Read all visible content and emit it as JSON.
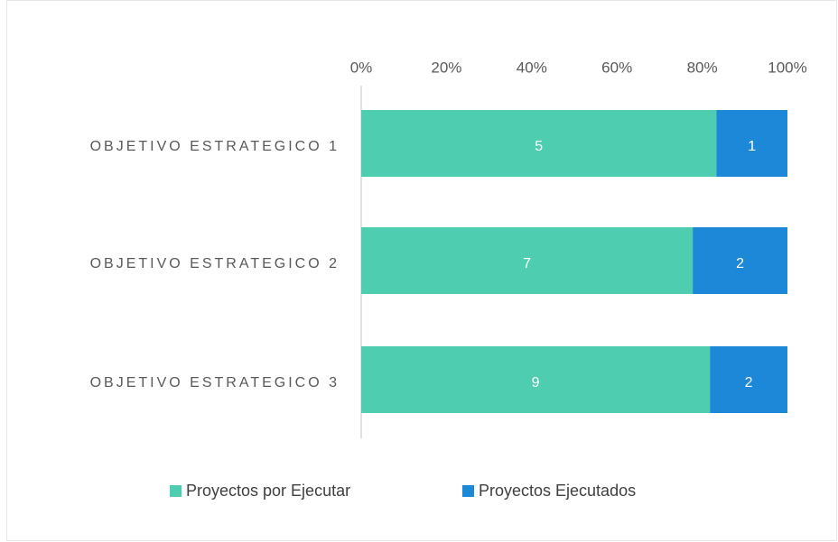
{
  "chart_data": {
    "type": "bar",
    "orientation": "horizontal",
    "stacking": "percent",
    "categories": [
      "OBJETIVO ESTRATEGICO 1",
      "OBJETIVO ESTRATEGICO 2",
      "OBJETIVO ESTRATEGICO 3"
    ],
    "series": [
      {
        "name": "Proyectos por Ejecutar",
        "color": "#4ecdb0",
        "values": [
          5,
          7,
          9
        ]
      },
      {
        "name": "Proyectos Ejecutados",
        "color": "#1e88d8",
        "values": [
          1,
          2,
          2
        ]
      }
    ],
    "xlim": [
      0,
      100
    ],
    "xticks": [
      {
        "value": 0,
        "label": "0%"
      },
      {
        "value": 20,
        "label": "20%"
      },
      {
        "value": 40,
        "label": "40%"
      },
      {
        "value": 60,
        "label": "60%"
      },
      {
        "value": 80,
        "label": "80%"
      },
      {
        "value": 100,
        "label": "100%"
      }
    ],
    "grid": false,
    "legend": "bottom"
  }
}
